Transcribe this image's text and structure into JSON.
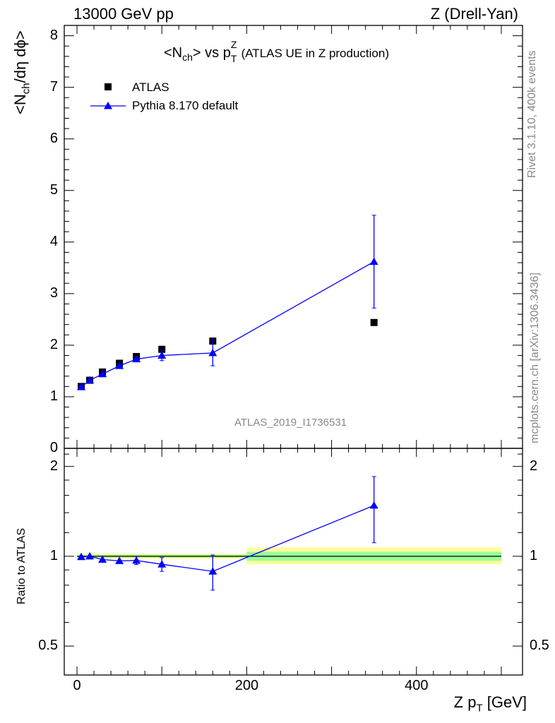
{
  "header": {
    "left": "13000 GeV pp",
    "right": "Z (Drell-Yan)"
  },
  "side_text": {
    "rivet": "Rivet 3.1.10,  400k events",
    "source": "mcplots.cern.ch [arXiv:1306.3436]"
  },
  "watermark": "ATLAS_2019_I1736531",
  "colors": {
    "data": "#000000",
    "mc": "#0000ff",
    "band_inner": "#99ff99",
    "band_outer": "#ffff99"
  },
  "chart_data": [
    {
      "type": "scatter",
      "title_parts": {
        "pre": "<N",
        "sub1": "ch",
        "mid": "> vs p",
        "sub2": "T",
        "sup2": "Z",
        "post": " (ATLAS UE in Z production)"
      },
      "ylabel_parts": {
        "pre": "<N",
        "sub": "ch",
        "post": "/dη dϕ>"
      },
      "xlim": [
        -15,
        525
      ],
      "ylim": [
        0,
        8.2
      ],
      "y_ticks": [
        0,
        1,
        2,
        3,
        4,
        5,
        6,
        7,
        8
      ],
      "legend": {
        "placement": "top-left",
        "entries": [
          "ATLAS",
          "Pythia 8.170 default"
        ]
      },
      "series": [
        {
          "name": "ATLAS",
          "marker": "square",
          "x": [
            5,
            15,
            30,
            50,
            70,
            100,
            160,
            350
          ],
          "y": [
            1.2,
            1.32,
            1.48,
            1.65,
            1.78,
            1.92,
            2.08,
            2.44
          ],
          "yerr": [
            0.01,
            0.01,
            0.01,
            0.01,
            0.01,
            0.02,
            0.03,
            0.06
          ]
        },
        {
          "name": "Pythia 8.170 default",
          "marker": "triangle",
          "x": [
            5,
            15,
            30,
            50,
            70,
            100,
            160,
            350
          ],
          "y": [
            1.19,
            1.32,
            1.44,
            1.6,
            1.73,
            1.8,
            1.85,
            3.62
          ],
          "yerr": [
            0.02,
            0.02,
            0.03,
            0.04,
            0.05,
            0.1,
            0.25,
            0.9
          ]
        }
      ]
    },
    {
      "type": "scatter",
      "ylabel": "Ratio to ATLAS",
      "xlabel_parts": {
        "pre": "Z p",
        "sub": "T",
        "post": " [GeV]"
      },
      "xlim": [
        -15,
        525
      ],
      "x_ticks": [
        0,
        200,
        400
      ],
      "ylim": [
        0.4,
        2.3
      ],
      "y_scale": "log",
      "y_ticks": [
        0.5,
        1,
        2
      ],
      "band_bins": [
        {
          "x0": 0,
          "x1": 200,
          "inner": [
            0.99,
            1.01
          ],
          "outer": [
            0.98,
            1.02
          ]
        },
        {
          "x0": 200,
          "x1": 500,
          "inner": [
            0.965,
            1.035
          ],
          "outer": [
            0.94,
            1.07
          ]
        }
      ],
      "series": [
        {
          "name": "Pythia 8.170 default",
          "x": [
            5,
            15,
            30,
            50,
            70,
            100,
            160,
            350
          ],
          "y": [
            0.995,
            1.0,
            0.975,
            0.965,
            0.968,
            0.94,
            0.89,
            1.48
          ],
          "yerr": [
            0.015,
            0.015,
            0.015,
            0.02,
            0.03,
            0.05,
            0.12,
            0.37
          ]
        }
      ]
    }
  ]
}
